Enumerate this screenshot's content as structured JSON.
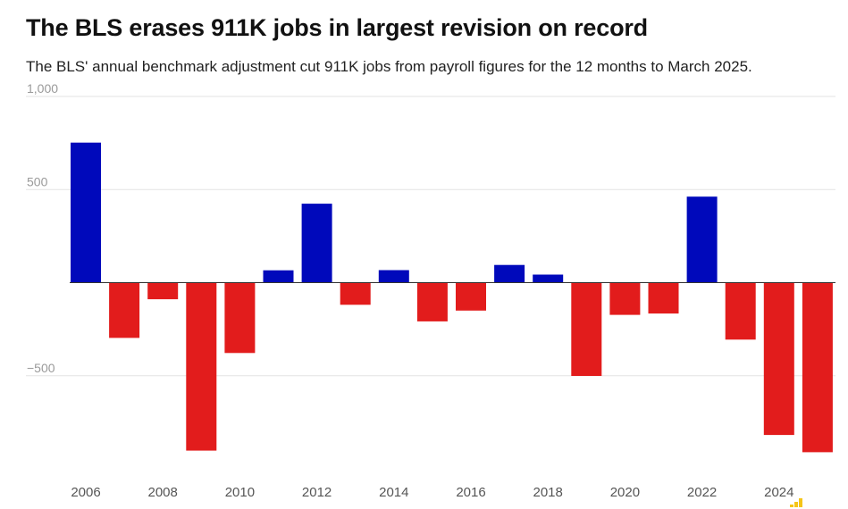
{
  "header": {
    "title": "The BLS erases 911K jobs in largest revision on record",
    "subtitle": "The BLS' annual benchmark adjustment cut 911K jobs from payroll figures for the 12 months to March 2025."
  },
  "chart_data": {
    "type": "bar",
    "title": "The BLS erases 911K jobs in largest revision on record",
    "subtitle": "The BLS' annual benchmark adjustment cut 911K jobs from payroll figures for the 12 months to March 2025.",
    "categories": [
      2006,
      2007,
      2008,
      2009,
      2010,
      2011,
      2012,
      2013,
      2014,
      2015,
      2016,
      2017,
      2018,
      2019,
      2020,
      2021,
      2022,
      2023,
      2024,
      2025
    ],
    "values": [
      752,
      -297,
      -89,
      -902,
      -378,
      66,
      424,
      -119,
      67,
      -208,
      -150,
      95,
      43,
      -501,
      -173,
      -166,
      462,
      -306,
      -818,
      -911
    ],
    "colors": {
      "positive": "#0009bb",
      "negative": "#e21c1c"
    },
    "yticks": [
      1000,
      500,
      0,
      -500
    ],
    "ytick_labels": [
      "1,000",
      "500",
      "",
      "−500"
    ],
    "xtick_labels": [
      "2006",
      "2008",
      "2010",
      "2012",
      "2014",
      "2016",
      "2018",
      "2020",
      "2022",
      "2024"
    ],
    "ylim": [
      -1000,
      1000
    ],
    "xlabel": "",
    "ylabel": "",
    "grid": true,
    "legend": "none"
  }
}
